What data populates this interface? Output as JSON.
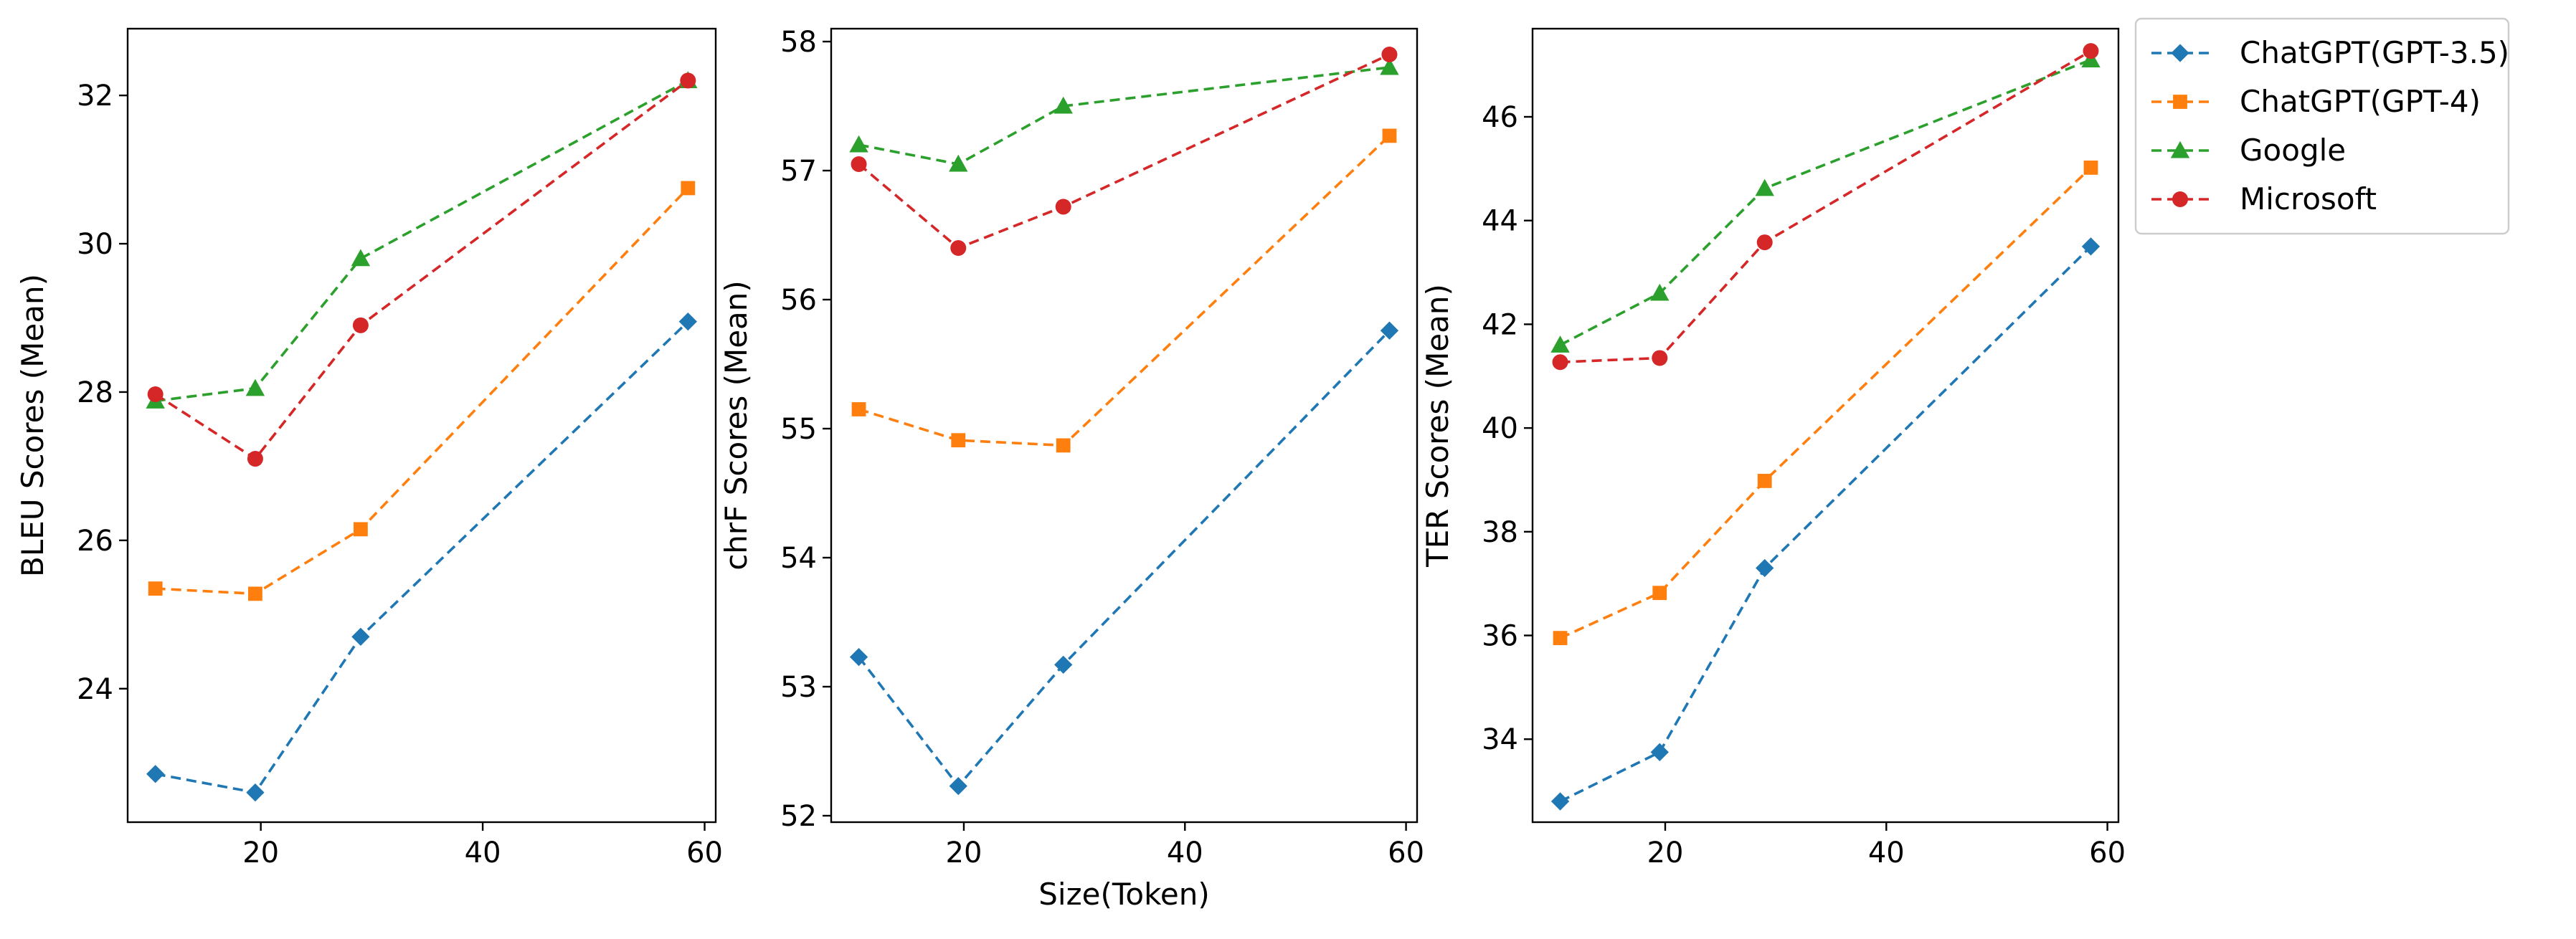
{
  "chart_data": {
    "type": "line",
    "shared_xlabel": "Size(Token)",
    "x": [
      10.5,
      19.5,
      29,
      58.5
    ],
    "series_style": [
      {
        "name": "ChatGPT(GPT-3.5)",
        "color": "#1f77b4",
        "marker": "diamond"
      },
      {
        "name": "ChatGPT(GPT-4)",
        "color": "#ff7f0e",
        "marker": "square"
      },
      {
        "name": "Google",
        "color": "#2ca02c",
        "marker": "triangle"
      },
      {
        "name": "Microsoft",
        "color": "#d62728",
        "marker": "circle"
      }
    ],
    "panels": [
      {
        "ylabel": "BLEU Scores (Mean)",
        "xlim": [
          8,
          61
        ],
        "ylim": [
          22.2,
          32.9
        ],
        "xticks": [
          20,
          40,
          60
        ],
        "yticks": [
          24,
          26,
          28,
          30,
          32
        ],
        "series": [
          {
            "name": "ChatGPT(GPT-3.5)",
            "values": [
              22.85,
              22.6,
              24.7,
              28.95
            ]
          },
          {
            "name": "ChatGPT(GPT-4)",
            "values": [
              25.35,
              25.28,
              26.15,
              30.75
            ]
          },
          {
            "name": "Google",
            "values": [
              27.88,
              28.05,
              29.8,
              32.2
            ]
          },
          {
            "name": "Microsoft",
            "values": [
              27.97,
              27.1,
              28.9,
              32.2
            ]
          }
        ]
      },
      {
        "ylabel": "chrF Scores (Mean)",
        "xlim": [
          8,
          61
        ],
        "ylim": [
          51.95,
          58.1
        ],
        "xticks": [
          20,
          40,
          60
        ],
        "yticks": [
          52,
          53,
          54,
          55,
          56,
          57,
          58
        ],
        "series": [
          {
            "name": "ChatGPT(GPT-3.5)",
            "values": [
              53.23,
              52.23,
              53.17,
              55.76
            ]
          },
          {
            "name": "ChatGPT(GPT-4)",
            "values": [
              55.15,
              54.91,
              54.87,
              57.27
            ]
          },
          {
            "name": "Google",
            "values": [
              57.2,
              57.05,
              57.5,
              57.8
            ]
          },
          {
            "name": "Microsoft",
            "values": [
              57.05,
              56.4,
              56.72,
              57.9
            ]
          }
        ]
      },
      {
        "ylabel": "TER Scores (Mean)",
        "xlim": [
          8,
          61
        ],
        "ylim": [
          32.4,
          47.7
        ],
        "xticks": [
          20,
          40,
          60
        ],
        "yticks": [
          34,
          36,
          38,
          40,
          42,
          44,
          46
        ],
        "series": [
          {
            "name": "ChatGPT(GPT-3.5)",
            "values": [
              32.8,
              33.75,
              37.3,
              43.5
            ]
          },
          {
            "name": "ChatGPT(GPT-4)",
            "values": [
              35.95,
              36.82,
              38.98,
              45.02
            ]
          },
          {
            "name": "Google",
            "values": [
              41.6,
              42.6,
              44.62,
              47.1
            ]
          },
          {
            "name": "Microsoft",
            "values": [
              41.27,
              41.35,
              43.58,
              47.27
            ]
          }
        ]
      }
    ],
    "legend": {
      "placement": "outside-right-top",
      "entries": [
        "ChatGPT(GPT-3.5)",
        "ChatGPT(GPT-4)",
        "Google",
        "Microsoft"
      ]
    }
  }
}
